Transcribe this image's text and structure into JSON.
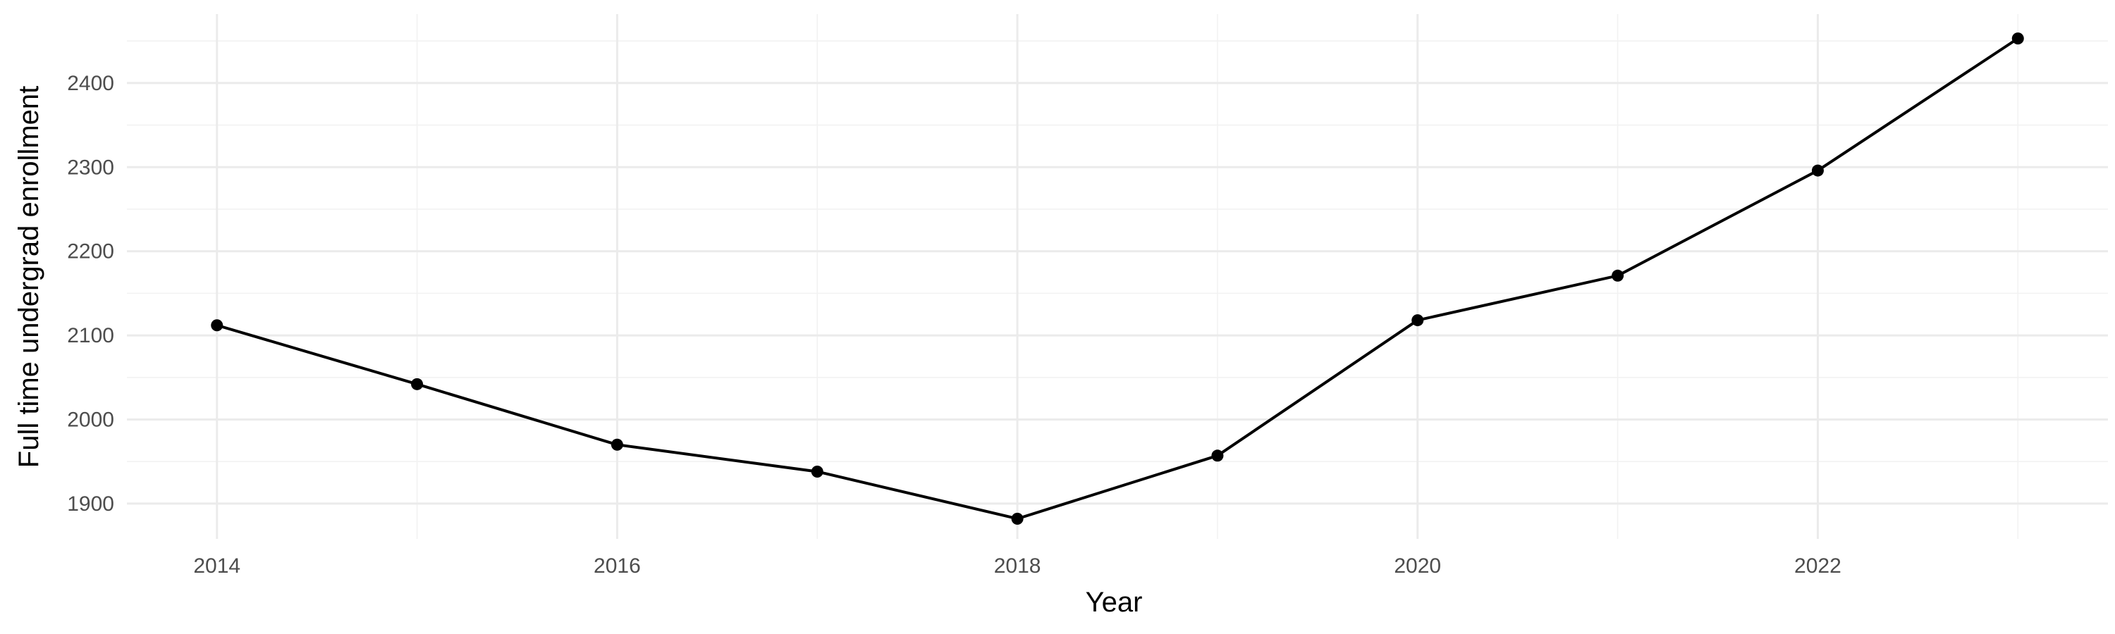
{
  "chart_data": {
    "type": "line",
    "title": "",
    "xlabel": "Year",
    "ylabel": "Full time undergrad enrollment",
    "x": [
      2014,
      2015,
      2016,
      2017,
      2018,
      2019,
      2020,
      2021,
      2022,
      2023
    ],
    "series": [
      {
        "values": [
          2112,
          2042,
          1970,
          1938,
          1882,
          1957,
          2118,
          2171,
          2296,
          2453
        ]
      }
    ],
    "xlim": [
      2013.55,
      2023.45
    ],
    "ylim": [
      1858,
      2482
    ],
    "xticks": [
      2014,
      2016,
      2018,
      2020,
      2022
    ],
    "xtick_labels": [
      "2014",
      "2016",
      "2018",
      "2020",
      "2022"
    ],
    "yticks": [
      1900,
      2000,
      2100,
      2200,
      2300,
      2400
    ],
    "ytick_labels": [
      "1900",
      "2000",
      "2100",
      "2200",
      "2300",
      "2400"
    ],
    "grid": true,
    "legend": "none",
    "colors": {
      "line": "#000000",
      "point": "#000000",
      "grid_major": "#ebebeb",
      "grid_minor": "#f2f2f2",
      "tick_text": "#4d4d4d"
    }
  }
}
